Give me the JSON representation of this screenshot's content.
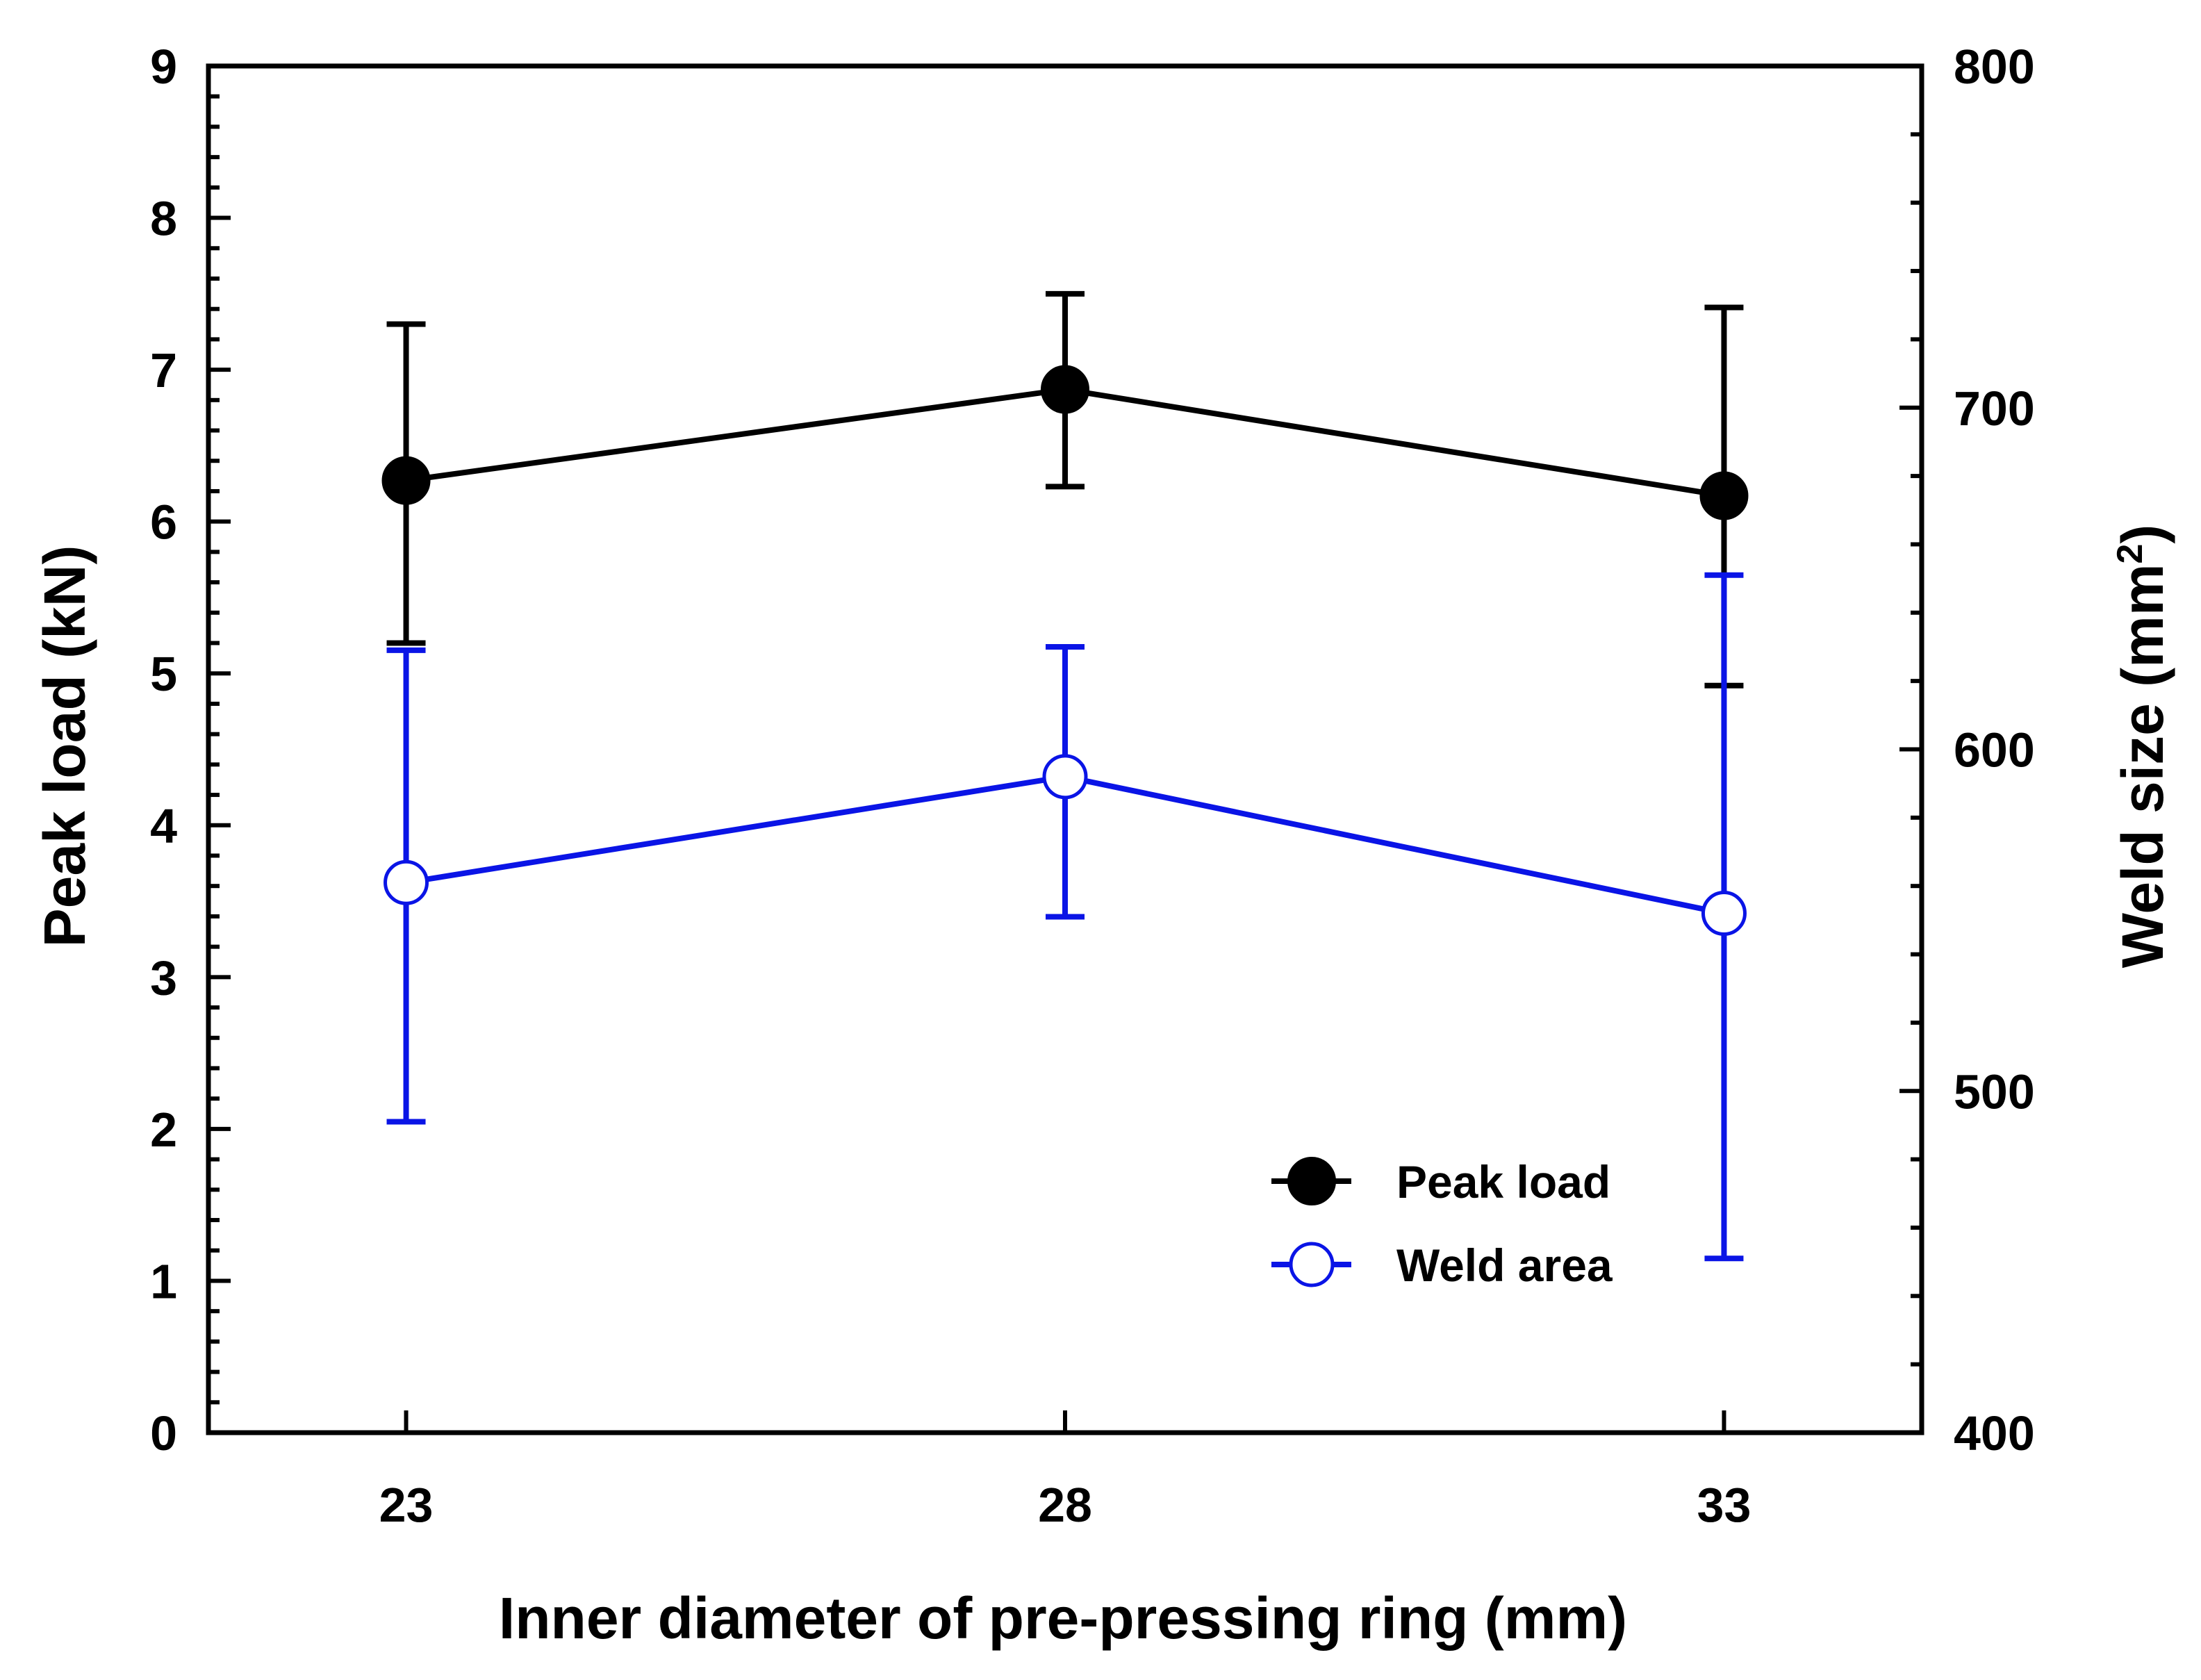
{
  "chart_data": {
    "type": "line",
    "xlabel": "Inner diameter of pre-pressing ring (mm)",
    "ylabel": "Peak load (kN)",
    "y2label": "Weld size (mm",
    "y2label_sup": "2",
    "y2label_close": ")",
    "x": [
      23,
      28,
      33
    ],
    "xticks": [
      "23",
      "28",
      "33"
    ],
    "xlim": [
      21.5,
      34.5
    ],
    "ylim": [
      0,
      9
    ],
    "yticks": [
      "0",
      "1",
      "2",
      "3",
      "4",
      "5",
      "6",
      "7",
      "8",
      "9"
    ],
    "y2lim": [
      400,
      800
    ],
    "y2ticks": [
      "400",
      "500",
      "600",
      "700",
      "800"
    ],
    "grid": false,
    "legend_position": "bottom-right",
    "series": [
      {
        "name": "Peak load",
        "axis": "left",
        "color": "#000000",
        "marker": "filled-circle",
        "values": [
          6.27,
          6.87,
          6.17
        ],
        "error_low": [
          5.2,
          6.23,
          4.92
        ],
        "error_high": [
          7.3,
          7.5,
          7.41
        ]
      },
      {
        "name": "Weld area",
        "axis": "right",
        "color": "#0a14e6",
        "marker": "open-circle",
        "values": [
          561,
          592,
          552
        ],
        "error_low": [
          491,
          551,
          451
        ],
        "error_high": [
          629,
          630,
          651
        ]
      }
    ]
  }
}
